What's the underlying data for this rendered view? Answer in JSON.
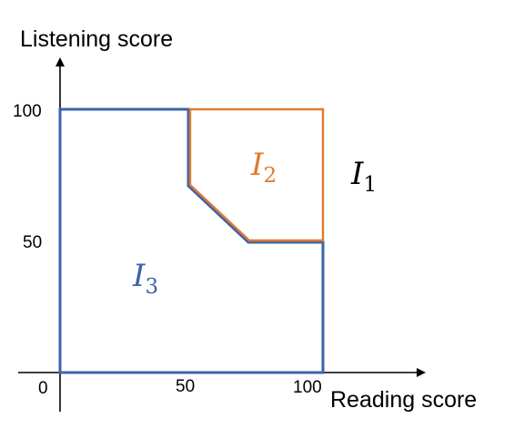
{
  "axes": {
    "x_title": "Reading score",
    "y_title": "Listening score",
    "x_ticks": [
      "0",
      "50",
      "100"
    ],
    "y_ticks": [
      "50",
      "100"
    ]
  },
  "regions": {
    "i1": {
      "letter": "I",
      "subscript": "1",
      "color": "#000000"
    },
    "i2": {
      "letter": "I",
      "subscript": "2",
      "color": "#E07A2E"
    },
    "i3": {
      "letter": "I",
      "subscript": "3",
      "color": "#3B64A8"
    }
  },
  "colors": {
    "outer_boundary": "#3B64A8",
    "inner_boundary": "#E07A2E",
    "axis": "#000000"
  }
}
